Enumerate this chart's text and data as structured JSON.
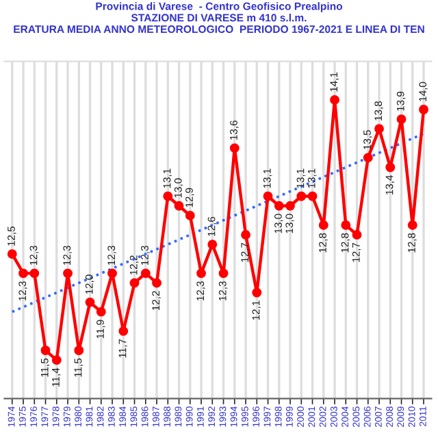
{
  "chart_data": {
    "type": "line",
    "title": "Provincia di Varese  - Centro Geofisico Prealpino\nSTAZIONE DI VARESE m 410 s.l.m.\nERATURA MEDIA ANNO METEOROLOGICO  PERIODO 1967-2021 E LINEA DI TEN",
    "categories": [
      "1974",
      "1975",
      "1976",
      "1977",
      "1978",
      "1979",
      "1980",
      "1981",
      "1982",
      "1983",
      "1984",
      "1985",
      "1986",
      "1987",
      "1988",
      "1989",
      "1990",
      "1991",
      "1992",
      "1993",
      "1994",
      "1995",
      "1996",
      "1997",
      "1998",
      "1999",
      "2000",
      "2001",
      "2002",
      "2003",
      "2004",
      "2005",
      "2006",
      "2007",
      "2008",
      "2009",
      "2010",
      "2011"
    ],
    "series": [
      {
        "color": "#ff0000",
        "marker": "circle",
        "line_style": "solid",
        "values": [
          12.5,
          12.3,
          12.3,
          11.5,
          11.4,
          12.3,
          11.5,
          12.0,
          11.9,
          12.3,
          11.7,
          12.2,
          12.3,
          12.2,
          13.1,
          13.0,
          12.9,
          12.3,
          12.6,
          12.3,
          13.6,
          12.7,
          12.1,
          13.1,
          13.0,
          13.0,
          13.1,
          13.1,
          12.8,
          14.1,
          12.8,
          12.7,
          13.5,
          13.8,
          13.4,
          13.9,
          12.8,
          14.0
        ],
        "value_labels": [
          "12,5",
          "12,3",
          "12,3",
          "11,5",
          "11,4",
          "12,3",
          "11,5",
          "12,0",
          "11,9",
          "12,3",
          "11,7",
          "12,2",
          "12,3",
          "12,2",
          "13,1",
          "13,0",
          "12,9",
          "12,3",
          "12,6",
          "12,3",
          "13,6",
          "12,7",
          "12,1",
          "13,1",
          "13,0",
          "13,0",
          "13,1",
          "13,1",
          "12,8",
          "14,1",
          "12,8",
          "12,7",
          "13,5",
          "13,8",
          "13,4",
          "13,9",
          "12,8",
          "14,0"
        ]
      },
      {
        "color": "#3366ff",
        "marker": "none",
        "line_style": "dotted",
        "values": [
          11.9,
          11.95,
          12.0,
          12.05,
          12.1,
          12.15,
          12.2,
          12.25,
          12.3,
          12.35,
          12.4,
          12.45,
          12.5,
          12.55,
          12.6,
          12.65,
          12.7,
          12.75,
          12.8,
          12.85,
          12.9,
          12.95,
          13.0,
          13.05,
          13.1,
          13.15,
          13.2,
          13.25,
          13.3,
          13.35,
          13.4,
          13.45,
          13.5,
          13.55,
          13.6,
          13.65,
          13.7,
          13.75
        ]
      }
    ],
    "ylim": [
      11.0,
      14.5
    ],
    "grid": "x",
    "tick_labels": "x",
    "legend": false
  }
}
